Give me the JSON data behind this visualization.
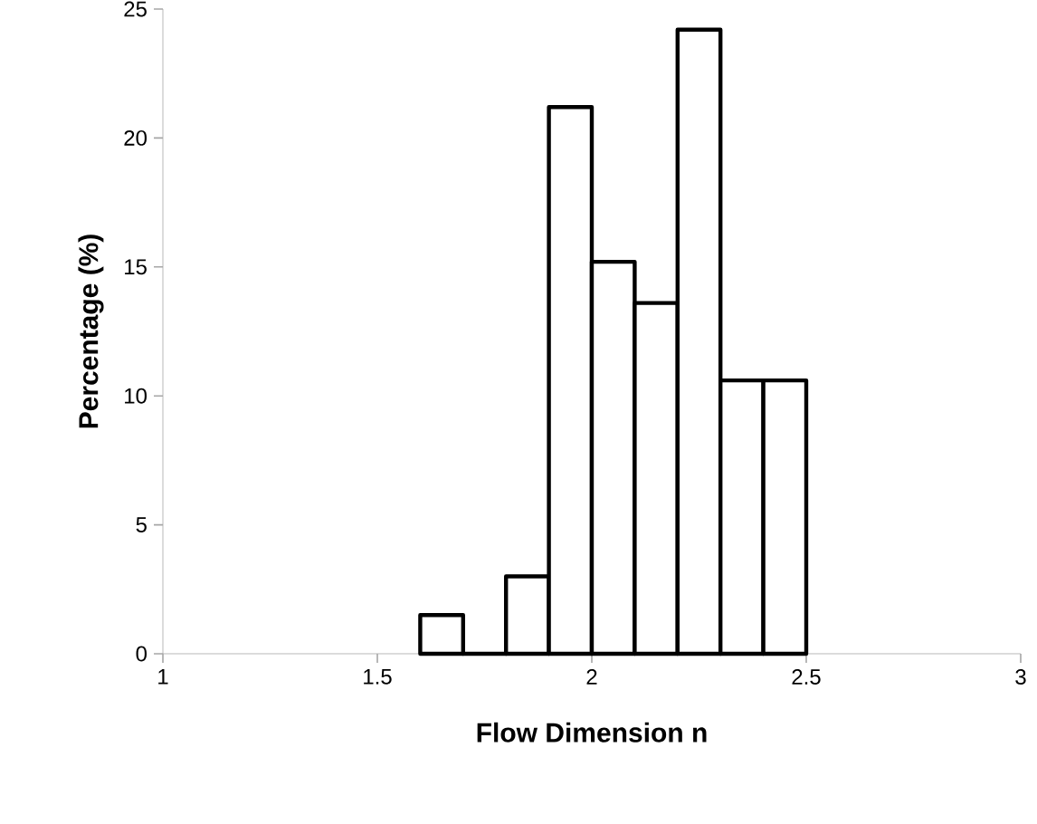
{
  "chart_data": {
    "type": "histogram",
    "xlabel": "Flow Dimension n",
    "ylabel": "Percentage (%)",
    "bins": [
      1.6,
      1.7,
      1.8,
      1.9,
      2.0,
      2.1,
      2.2,
      2.3,
      2.4,
      2.5
    ],
    "values": [
      1.5,
      0,
      3.0,
      21.2,
      15.2,
      13.6,
      24.2,
      10.6,
      10.6
    ],
    "color": "#ffffff",
    "xlim": [
      1,
      3
    ],
    "ylim": [
      0,
      25
    ],
    "xticks": [
      1,
      1.5,
      2,
      2.5,
      3
    ],
    "yticks": [
      0,
      5,
      10,
      15,
      20,
      25
    ],
    "grid": false
  }
}
